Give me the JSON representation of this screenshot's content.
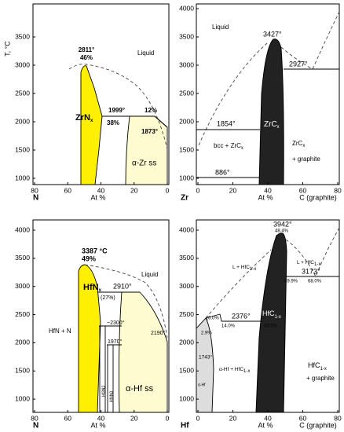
{
  "y_axis_label": "T, °C",
  "panels": [
    {
      "element": "N",
      "x_axis_label": "At %",
      "xticks": [
        80,
        60,
        40,
        20,
        0
      ],
      "yticks": [
        3500,
        3000,
        2500,
        2000,
        1500,
        1000
      ],
      "labels": {
        "peak_temp": "2811°",
        "peak_comp": "46%",
        "liquid": "Liquid",
        "phase": {
          "main": "ZrN",
          "sub": "x"
        },
        "eutectic_temp": "1999°",
        "eutectic_comp": "38%",
        "solubility": "12%",
        "transition_temp": "1873°",
        "solid_solution": "α-Zr ss"
      }
    },
    {
      "element": "Zr",
      "x_axis_label": "At %",
      "x_end_label": "C (graphite)",
      "xticks": [
        0,
        20,
        40,
        60,
        80
      ],
      "yticks": [
        4000,
        3500,
        3000,
        2500,
        2000,
        1500,
        1000
      ],
      "labels": {
        "liquid": "Liquid",
        "peak_temp": "3427°",
        "eutectic_temp": "2927°",
        "peritectic_temp": "1854°",
        "left_region": {
          "main": "bcc + ZrC",
          "sub": "x"
        },
        "phase": {
          "main": "ZrC",
          "sub": "x"
        },
        "right_region": {
          "main": "ZrC",
          "sub": "x"
        },
        "right_region_2": "+ graphite",
        "transition_temp": "886°"
      }
    },
    {
      "element": "N",
      "x_axis_label": "At %",
      "xticks": [
        80,
        60,
        40,
        20,
        0
      ],
      "yticks": [
        4000,
        3500,
        3000,
        2500,
        2000,
        1500,
        1000
      ],
      "labels": {
        "peak_temp": "3387 °C",
        "peak_comp": "49%",
        "liquid": "Liquid",
        "phase": {
          "main": "HfN",
          "sub": "x"
        },
        "peritectic_temp": "2910°",
        "peritectic_comp": "(27%)",
        "left_region": "HfN + N",
        "temp_a": "~2300°",
        "temp_b": "1970°",
        "temp_c": "2190°",
        "compound_a": "Hf3N2",
        "compound_b": "Hf4N3",
        "solid_solution": "α-Hf ss"
      }
    },
    {
      "element": "Hf",
      "x_axis_label": "At %",
      "x_end_label": "C (graphite)",
      "xticks": [
        0,
        20,
        40,
        60,
        80
      ],
      "yticks": [
        4000,
        3500,
        3000,
        2500,
        2000,
        1500,
        1000
      ],
      "labels": {
        "peak_temp": "3942°",
        "peak_comp": "48.4%",
        "left_liquid": {
          "main": "L + HfC",
          "sub": "1-x"
        },
        "right_liquid": {
          "main": "L + HfC",
          "sub": "1-x"
        },
        "eutectic_temp": "3173°",
        "eutectic_comp_a": "49.9%",
        "eutectic_comp_b": "68.0%",
        "peritectic_temp": "2376°",
        "comp_a": "(6.0%",
        "comp_b": "2.9%",
        "comp_c": "14.0%",
        "comp_d": "33.5%",
        "phase": {
          "main": "HfC",
          "sub": "1-x"
        },
        "low_temp": "1743°",
        "alpha": "α-Hf",
        "two_phase": {
          "main": "α-Hf + HfC",
          "sub": "1-x"
        },
        "right_region": {
          "main": "HfC",
          "sub": "1-x"
        },
        "right_region_2": "+ graphite"
      }
    }
  ]
}
